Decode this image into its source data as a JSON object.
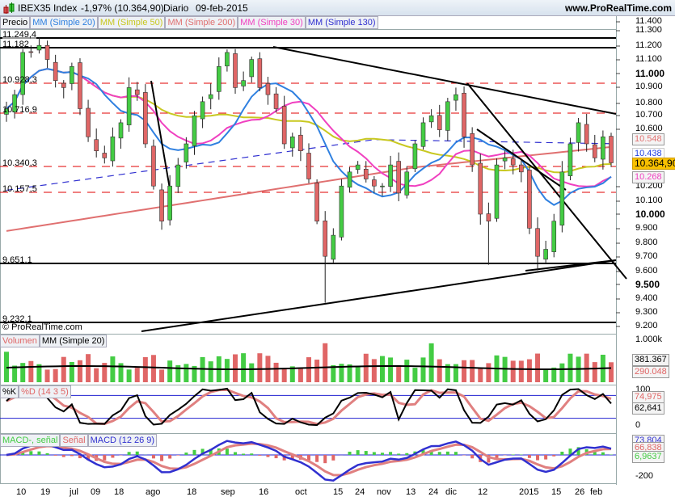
{
  "header": {
    "symbol": "IBEX35 Index",
    "change": "-1,97% (10.364,90)",
    "period": "Diario",
    "date": "09-feb-2015",
    "site": "www.ProRealTime.com"
  },
  "legend": {
    "price": "Precio",
    "ma20": "MM (Simple 20)",
    "ma50": "MM (Simple 50)",
    "ma200": "MM (Simple 200)",
    "ma30": "MM (Simple 30)",
    "ma130": "MM (Simple 130)"
  },
  "levels": [
    "11.249,4",
    "11.182",
    "10.928,3",
    "10.716,9",
    "10.340,3",
    "10.157,5",
    "9.651,1",
    "9.232,1"
  ],
  "copyright": "© ProRealTime.com",
  "price_axis": [
    "11.400",
    "11.300",
    "11.200",
    "11.100",
    "11.000",
    "10.900",
    "10.800",
    "10.700",
    "10.600",
    "10.200",
    "10.100",
    "10.000",
    "9.900",
    "9.800",
    "9.700",
    "9.600",
    "9.500",
    "9.400",
    "9.300",
    "9.200"
  ],
  "tags": {
    "ma200": "10.548",
    "ma130": "10.438",
    "last": "10.364,90",
    "ma30": "10.268"
  },
  "volume": {
    "label": "Volumen",
    "ma": "MM (Simple 20)",
    "axis": "1.000k",
    "ma_value": "381.367",
    "value": "290.048"
  },
  "stoch": {
    "k": "%K",
    "d": "%D (14 3 5)",
    "axis_top": "100",
    "axis_bottom": "0",
    "d_value": "74,975",
    "k_value": "62,641"
  },
  "macd": {
    "hist": "MACD-, señal",
    "signal": "Señal",
    "macd": "MACD (12 26 9)",
    "macd_value": "73,804",
    "signal_value": "66,838",
    "hist_value": "6,9637",
    "axis": "-200"
  },
  "x_labels": [
    "10",
    "19",
    "jul",
    "09",
    "18",
    "ago",
    "18",
    "sep",
    "16",
    "oct",
    "15",
    "24",
    "nov",
    "13",
    "24",
    "dic",
    "12",
    "2015",
    "15",
    "26",
    "feb"
  ],
  "colors": {
    "up": "#44cc44",
    "down": "#e06666",
    "ma20": "#2f80e0",
    "ma50": "#c8c820",
    "ma200": "#e07070",
    "ma30": "#f040c0",
    "ma130": "#3030d0",
    "level": "#e00000"
  },
  "chart_data": {
    "type": "candlestick",
    "title": "IBEX35 Index",
    "ylim": [
      9150,
      11450
    ],
    "closes": [
      10750,
      10850,
      11150,
      11150,
      11200,
      11100,
      10950,
      10900,
      11050,
      10750,
      10550,
      10450,
      10400,
      10550,
      10650,
      10900,
      10850,
      10500,
      10200,
      9950,
      10200,
      10350,
      10500,
      10700,
      10800,
      10850,
      11050,
      11150,
      10900,
      10950,
      11100,
      10900,
      10850,
      10750,
      10500,
      10550,
      10450,
      10250,
      9950,
      9700,
      9850,
      10200,
      10300,
      10350,
      10250,
      10200,
      10200,
      10350,
      10150,
      10300,
      10500,
      10650,
      10700,
      10600,
      10800,
      10850,
      10550,
      10350,
      10000,
      9950,
      10350,
      10400,
      10350,
      10300,
      9900,
      9700,
      9750,
      9950,
      10300,
      10500,
      10650,
      10500,
      10400,
      10550,
      10365
    ],
    "last": 10364.9
  }
}
